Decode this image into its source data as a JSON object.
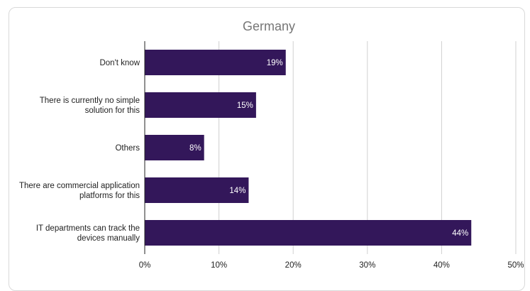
{
  "chart_data": {
    "type": "bar",
    "orientation": "horizontal",
    "title": "Germany",
    "categories": [
      [
        "Don't know"
      ],
      [
        "There is currently no simple",
        "solution for this"
      ],
      [
        "Others"
      ],
      [
        "There are commercial application",
        "platforms for this"
      ],
      [
        "IT departments can track the",
        "devices manually"
      ]
    ],
    "values": [
      19,
      15,
      8,
      14,
      44
    ],
    "data_labels": [
      "19%",
      "15%",
      "8%",
      "14%",
      "44%"
    ],
    "xlim": [
      0,
      50
    ],
    "x_ticks": [
      0,
      10,
      20,
      30,
      40,
      50
    ],
    "x_tick_labels": [
      "0%",
      "10%",
      "20%",
      "30%",
      "40%",
      "50%"
    ],
    "grid": true,
    "bar_color": "#33175a",
    "grid_color": "#d0d0d0"
  }
}
